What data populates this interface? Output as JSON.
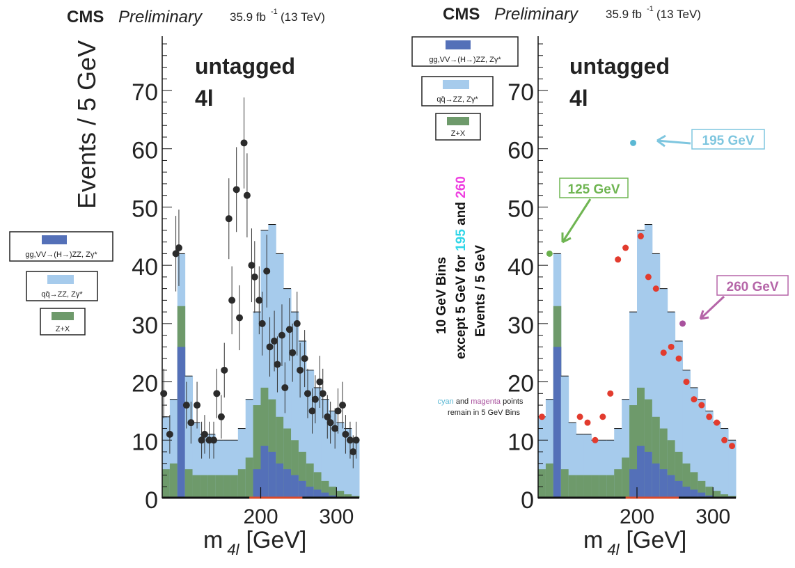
{
  "colors": {
    "signal": "#5470b8",
    "qqzz": "#a6cbec",
    "zx": "#6e9a6b",
    "data_left": "#2b2b2b",
    "data_right": "#e23b2e",
    "cyan": "#5bb8d4",
    "green": "#6ab04c",
    "magenta": "#a8519d",
    "callout_cyan_text": "#7ec6df",
    "callout_green_text": "#6fb552",
    "callout_magenta_text": "#b565a8"
  },
  "legend": {
    "signal": "gg,VV→(H→)ZZ, Zγ*",
    "qqzz": "qq̄→ZZ, Zγ*",
    "zx": "Z+X"
  },
  "left_panel": {
    "header_cms": "CMS",
    "header_prelim": "Preliminary",
    "header_lumi": "35.9 fb",
    "header_lumi_sup": "-1",
    "header_energy": "(13 TeV)",
    "category_line1": "untagged",
    "category_line2": "4l",
    "ylabel": "Events / 5 GeV",
    "xlabel_main": "m",
    "xlabel_sub": "4l",
    "xlabel_unit": "[GeV]"
  },
  "right_panel": {
    "header_cms": "CMS",
    "header_prelim": "Preliminary",
    "header_lumi": "35.9 fb",
    "header_lumi_sup": "-1",
    "header_energy": "(13 TeV)",
    "category_line1": "untagged",
    "category_line2": "4l",
    "ylabel_line1": "10 GeV Bins",
    "ylabel_line2_a": "except 5 GeV for ",
    "ylabel_line2_b": "195",
    "ylabel_line2_c": " and ",
    "ylabel_line2_d": "260",
    "ylabel_line3": "Events / 5 GeV",
    "note_cyan": "cyan",
    "note_and": " and ",
    "note_magenta": "magenta",
    "note_rest": " points",
    "note_line2": "remain in 5 GeV Bins",
    "callout_195": "195 GeV",
    "callout_125": "125 GeV",
    "callout_260": "260 GeV",
    "xlabel_main": "m",
    "xlabel_sub": "4l",
    "xlabel_unit": "[GeV]"
  },
  "chart_data": [
    {
      "type": "bar",
      "title": "",
      "xlabel": "m4l [GeV]",
      "ylabel": "Events / 5 GeV",
      "xlim": [
        70,
        330
      ],
      "ylim": [
        0,
        80
      ],
      "x_ticks": [
        200,
        300
      ],
      "y_ticks": [
        0,
        10,
        20,
        30,
        40,
        50,
        60,
        70
      ],
      "stacked_histograms": {
        "bin_edges": [
          70,
          80,
          90,
          100,
          110,
          120,
          130,
          140,
          150,
          160,
          170,
          180,
          190,
          200,
          210,
          220,
          230,
          240,
          250,
          260,
          270,
          280,
          290,
          300,
          310,
          320,
          330
        ],
        "zx": [
          5,
          6,
          7,
          5,
          4,
          4,
          4,
          4,
          4,
          4,
          5,
          7,
          11,
          10,
          9,
          8,
          7,
          6,
          5,
          4,
          3,
          2,
          1.5,
          1,
          0.5,
          0.3
        ],
        "qqzz": [
          14,
          17,
          16,
          9,
          13,
          11,
          10,
          9,
          9,
          9,
          10,
          13,
          19,
          31,
          38,
          37,
          31,
          26,
          22,
          18,
          16,
          14,
          13,
          12,
          11,
          9
        ],
        "total": [
          14,
          17,
          42,
          21,
          13,
          11,
          11,
          10,
          10,
          10,
          12,
          17,
          32,
          46,
          47,
          42,
          36,
          32,
          27,
          22,
          19,
          17,
          15,
          13,
          12,
          10
        ],
        "signal": [
          0,
          0,
          26,
          0,
          0,
          0,
          0,
          0,
          0,
          0,
          0,
          0,
          5,
          9,
          8,
          6,
          5,
          4,
          3,
          2,
          1.5,
          1,
          0.5,
          0.3,
          0.2,
          0.1
        ]
      },
      "data_points": {
        "x": [
          72,
          80,
          88,
          92,
          102,
          108,
          116,
          122,
          126,
          132,
          138,
          142,
          148,
          152,
          158,
          162,
          168,
          172,
          178,
          182,
          188,
          192,
          198,
          202,
          208,
          212,
          218,
          222,
          228,
          232,
          238,
          242,
          248,
          252,
          258,
          262,
          268,
          272,
          278,
          282,
          288,
          292,
          298,
          302,
          308,
          312,
          318,
          322,
          326
        ],
        "y": [
          18,
          11,
          42,
          43,
          16,
          13,
          16,
          10,
          11,
          10,
          10,
          18,
          14,
          22,
          48,
          34,
          53,
          31,
          61,
          52,
          40,
          38,
          34,
          30,
          39,
          26,
          27,
          23,
          28,
          19,
          29,
          25,
          30,
          22,
          24,
          18,
          15,
          17,
          20,
          18,
          14,
          13,
          12,
          15,
          16,
          11,
          10,
          8,
          10
        ]
      }
    },
    {
      "type": "bar",
      "title": "",
      "xlabel": "m4l [GeV]",
      "ylabel": "Events / 5 GeV",
      "xlim": [
        70,
        330
      ],
      "ylim": [
        0,
        80
      ],
      "x_ticks": [
        200,
        300
      ],
      "y_ticks": [
        0,
        10,
        20,
        30,
        40,
        50,
        60,
        70
      ],
      "stacked_histograms": {
        "bin_edges": [
          70,
          80,
          90,
          100,
          110,
          120,
          130,
          140,
          150,
          160,
          170,
          180,
          190,
          200,
          210,
          220,
          230,
          240,
          250,
          260,
          270,
          280,
          290,
          300,
          310,
          320,
          330
        ],
        "zx": [
          5,
          6,
          7,
          5,
          4,
          4,
          4,
          4,
          4,
          4,
          5,
          7,
          11,
          10,
          9,
          8,
          7,
          6,
          5,
          4,
          3,
          2,
          1.5,
          1,
          0.5,
          0.3
        ],
        "qqzz": [
          14,
          17,
          16,
          9,
          13,
          11,
          10,
          9,
          9,
          9,
          10,
          13,
          19,
          31,
          38,
          37,
          31,
          26,
          22,
          18,
          16,
          14,
          13,
          12,
          11,
          9
        ],
        "total": [
          14,
          17,
          42,
          21,
          13,
          11,
          11,
          10,
          10,
          10,
          12,
          17,
          32,
          46,
          47,
          42,
          36,
          32,
          27,
          22,
          19,
          17,
          15,
          13,
          12,
          10
        ],
        "signal": [
          0,
          0,
          26,
          0,
          0,
          0,
          0,
          0,
          0,
          0,
          0,
          0,
          5,
          9,
          8,
          6,
          5,
          4,
          3,
          2,
          1.5,
          1,
          0.5,
          0.3,
          0.2,
          0.1
        ]
      },
      "data_points": {
        "x": [
          75,
          85,
          125,
          135,
          145,
          155,
          165,
          175,
          185,
          195,
          205,
          215,
          225,
          235,
          245,
          255,
          260,
          265,
          275,
          285,
          295,
          305,
          315,
          325
        ],
        "y": [
          14,
          42,
          14,
          13,
          10,
          14,
          18,
          41,
          43,
          61,
          45,
          38,
          36,
          25,
          26,
          24,
          30,
          20,
          17,
          16,
          14,
          13,
          10,
          9
        ],
        "colors": [
          "red",
          "green",
          "red",
          "red",
          "red",
          "red",
          "red",
          "red",
          "red",
          "cyan",
          "red",
          "red",
          "red",
          "red",
          "red",
          "red",
          "magenta",
          "red",
          "red",
          "red",
          "red",
          "red",
          "red",
          "red"
        ]
      }
    }
  ]
}
